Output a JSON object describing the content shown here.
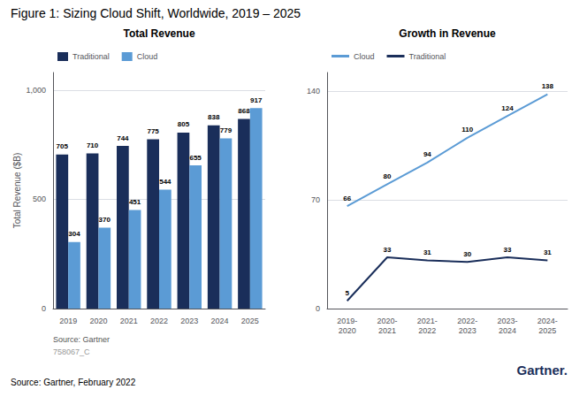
{
  "title": "Figure 1: Sizing Cloud Shift, Worldwide, 2019 – 2025",
  "annotations": [
    "Source: Gartner, February 2022",
    {
      "text": "Gartner.",
      "color": "#1a2e5a"
    }
  ],
  "chart_data": [
    {
      "type": "bar",
      "title": "Total Revenue",
      "ylabel": "Total Revenue ($B)",
      "categories": [
        "2019",
        "2020",
        "2021",
        "2022",
        "2023",
        "2024",
        "2025"
      ],
      "series": [
        {
          "name": "Traditional",
          "color": "#1a2e5a",
          "values": [
            705,
            710,
            744,
            775,
            805,
            838,
            868
          ]
        },
        {
          "name": "Cloud",
          "color": "#5b9bd5",
          "values": [
            304,
            370,
            451,
            544,
            655,
            779,
            917
          ]
        }
      ],
      "ylim": [
        0,
        1080
      ],
      "yticks": [
        0,
        500,
        {
          "value": 1000,
          "label": "1,000"
        }
      ],
      "grid": true,
      "legend": "upper left",
      "data_labels": true,
      "annotations": [
        "Source: Gartner",
        "758067_C"
      ]
    },
    {
      "type": "line",
      "title": "Growth in Revenue",
      "categories": [
        "2019-\n2020",
        "2020-\n2021",
        "2021-\n2022",
        "2022-\n2023",
        "2023-\n2024",
        "2024-\n2025"
      ],
      "series": [
        {
          "name": "Cloud",
          "color": "#5b9bd5",
          "values": [
            66,
            80,
            94,
            110,
            124,
            138
          ]
        },
        {
          "name": "Traditional",
          "color": "#1a2e5a",
          "values": [
            5,
            33,
            31,
            30,
            33,
            31
          ]
        }
      ],
      "ylim": [
        0,
        152
      ],
      "yticks": [
        0,
        70,
        140
      ],
      "grid": true,
      "legend": "upper left",
      "data_labels": true
    }
  ]
}
